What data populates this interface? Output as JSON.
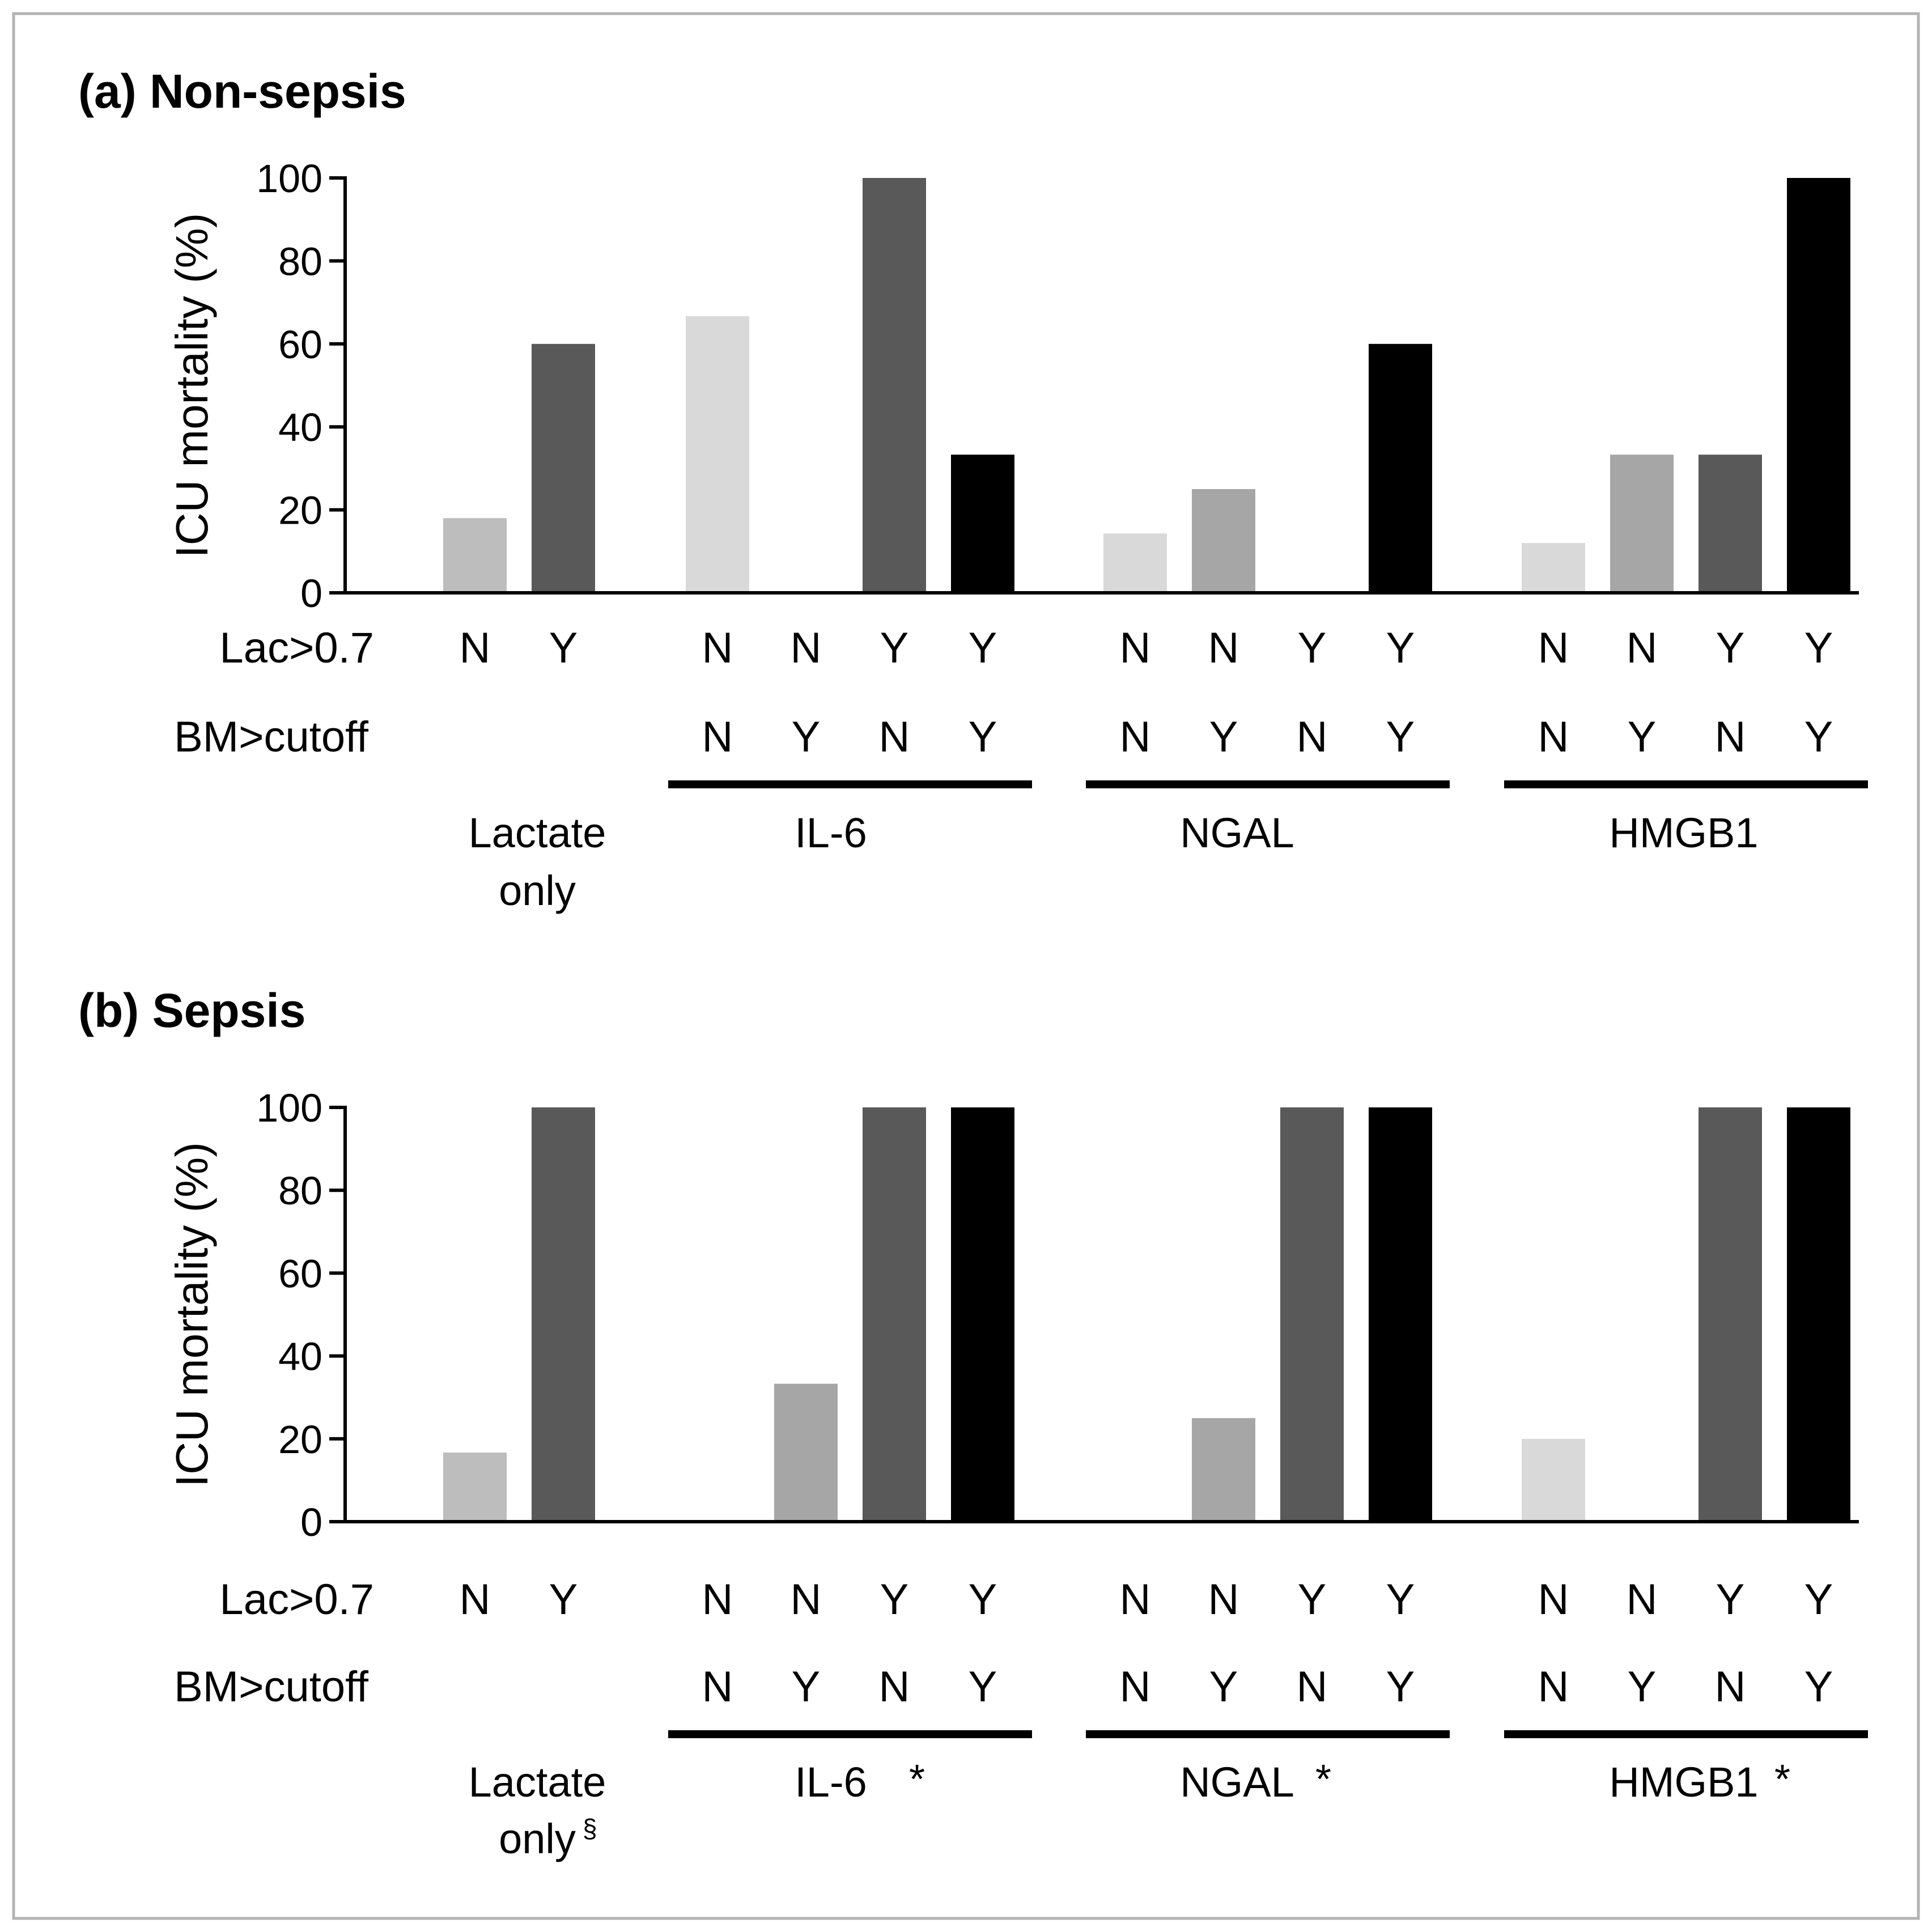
{
  "chart_data": [
    {
      "type": "bar",
      "title": "(a) Non-sepsis",
      "ylabel": "ICU mortality (%)",
      "ylim": [
        0,
        100
      ],
      "yticks": [
        "0",
        "20",
        "40",
        "60",
        "80",
        "100"
      ],
      "row_labels": {
        "lac": "Lac>0.7",
        "bm": "BM>cutoff"
      },
      "groups": [
        {
          "name_lines": [
            "Lactate",
            "only"
          ],
          "mark": "",
          "bars": [
            {
              "lac": "N",
              "bm": "",
              "value": 18,
              "color": "#bdbdbd"
            },
            {
              "lac": "Y",
              "bm": "",
              "value": 60,
              "color": "#595959"
            }
          ]
        },
        {
          "name_lines": [
            "IL-6"
          ],
          "mark": "",
          "bars": [
            {
              "lac": "N",
              "bm": "N",
              "value": 66.7,
              "color": "#d9d9d9"
            },
            {
              "lac": "N",
              "bm": "Y",
              "value": 0,
              "color": "#a6a6a6"
            },
            {
              "lac": "Y",
              "bm": "N",
              "value": 100,
              "color": "#595959"
            },
            {
              "lac": "Y",
              "bm": "Y",
              "value": 33.3,
              "color": "#000000"
            }
          ]
        },
        {
          "name_lines": [
            "NGAL"
          ],
          "mark": "",
          "bars": [
            {
              "lac": "N",
              "bm": "N",
              "value": 14.3,
              "color": "#d9d9d9"
            },
            {
              "lac": "N",
              "bm": "Y",
              "value": 25,
              "color": "#a6a6a6"
            },
            {
              "lac": "Y",
              "bm": "N",
              "value": 0,
              "color": "#595959"
            },
            {
              "lac": "Y",
              "bm": "Y",
              "value": 60,
              "color": "#000000"
            }
          ]
        },
        {
          "name_lines": [
            "HMGB1"
          ],
          "mark": "",
          "bars": [
            {
              "lac": "N",
              "bm": "N",
              "value": 12,
              "color": "#d9d9d9"
            },
            {
              "lac": "N",
              "bm": "Y",
              "value": 33.3,
              "color": "#a6a6a6"
            },
            {
              "lac": "Y",
              "bm": "N",
              "value": 33.3,
              "color": "#595959"
            },
            {
              "lac": "Y",
              "bm": "Y",
              "value": 100,
              "color": "#000000"
            }
          ]
        }
      ]
    },
    {
      "type": "bar",
      "title": "(b) Sepsis",
      "ylabel": "ICU mortality (%)",
      "ylim": [
        0,
        100
      ],
      "yticks": [
        "0",
        "20",
        "40",
        "60",
        "80",
        "100"
      ],
      "row_labels": {
        "lac": "Lac>0.7",
        "bm": "BM>cutoff"
      },
      "groups": [
        {
          "name_lines": [
            "Lactate",
            "only"
          ],
          "mark": "§",
          "bars": [
            {
              "lac": "N",
              "bm": "",
              "value": 16.7,
              "color": "#bdbdbd"
            },
            {
              "lac": "Y",
              "bm": "",
              "value": 100,
              "color": "#595959"
            }
          ]
        },
        {
          "name_lines": [
            "IL-6"
          ],
          "mark": "*",
          "bars": [
            {
              "lac": "N",
              "bm": "N",
              "value": 0,
              "color": "#d9d9d9"
            },
            {
              "lac": "N",
              "bm": "Y",
              "value": 33.3,
              "color": "#a6a6a6"
            },
            {
              "lac": "Y",
              "bm": "N",
              "value": 100,
              "color": "#595959"
            },
            {
              "lac": "Y",
              "bm": "Y",
              "value": 100,
              "color": "#000000"
            }
          ]
        },
        {
          "name_lines": [
            "NGAL"
          ],
          "mark": "*",
          "bars": [
            {
              "lac": "N",
              "bm": "N",
              "value": 0,
              "color": "#d9d9d9"
            },
            {
              "lac": "N",
              "bm": "Y",
              "value": 25,
              "color": "#a6a6a6"
            },
            {
              "lac": "Y",
              "bm": "N",
              "value": 100,
              "color": "#595959"
            },
            {
              "lac": "Y",
              "bm": "Y",
              "value": 100,
              "color": "#000000"
            }
          ]
        },
        {
          "name_lines": [
            "HMGB1"
          ],
          "mark": "*",
          "bars": [
            {
              "lac": "N",
              "bm": "N",
              "value": 20,
              "color": "#d9d9d9"
            },
            {
              "lac": "N",
              "bm": "Y",
              "value": 0,
              "color": "#a6a6a6"
            },
            {
              "lac": "Y",
              "bm": "N",
              "value": 100,
              "color": "#595959"
            },
            {
              "lac": "Y",
              "bm": "Y",
              "value": 100,
              "color": "#000000"
            }
          ]
        }
      ]
    }
  ]
}
